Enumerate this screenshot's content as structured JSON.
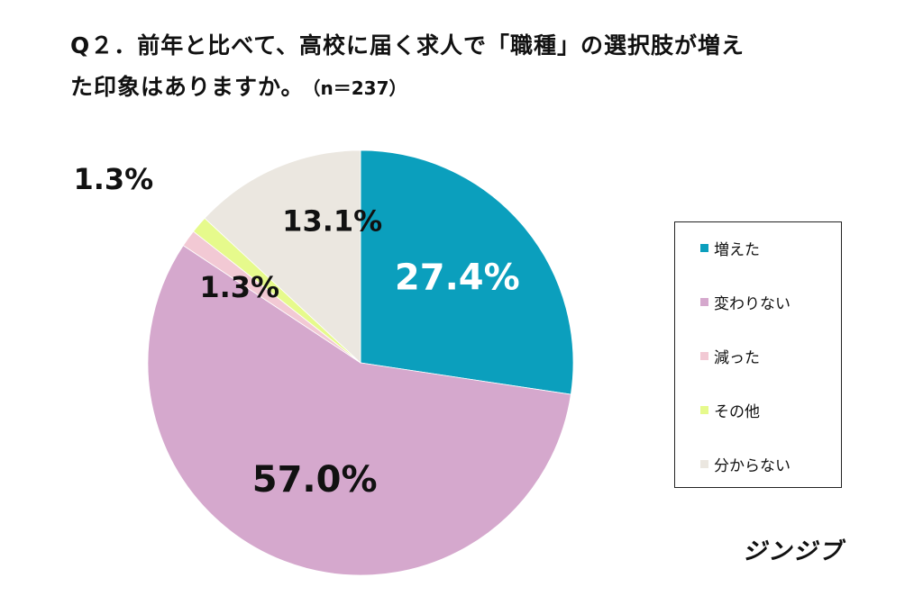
{
  "title": {
    "line1": "Q２．前年と比べて、高校に届く求人で「職種」の選択肢が増え",
    "line2": "た印象はありますか。",
    "n_label": "（n＝237）"
  },
  "chart_data": {
    "type": "pie",
    "start_angle_deg": 0,
    "direction": "clockwise",
    "slices": [
      {
        "label": "増えた",
        "value": 27.4,
        "display": "27.4%",
        "color": "#0b9fbd",
        "label_color": "#ffffff"
      },
      {
        "label": "変わりない",
        "value": 57.0,
        "display": "57.0%",
        "color": "#d5a8cd",
        "label_color": "#111111"
      },
      {
        "label": "減った",
        "value": 1.3,
        "display": "1.3%",
        "color": "#f2c9d4",
        "label_color": "#111111"
      },
      {
        "label": "その他",
        "value": 1.3,
        "display": "1.3%",
        "color": "#e6fa8c",
        "label_color": "#111111"
      },
      {
        "label": "分からない",
        "value": 13.1,
        "display": "13.1%",
        "color": "#ebe7e0",
        "label_color": "#111111"
      }
    ],
    "legend_position": "right"
  },
  "brand": "ジンジブ"
}
